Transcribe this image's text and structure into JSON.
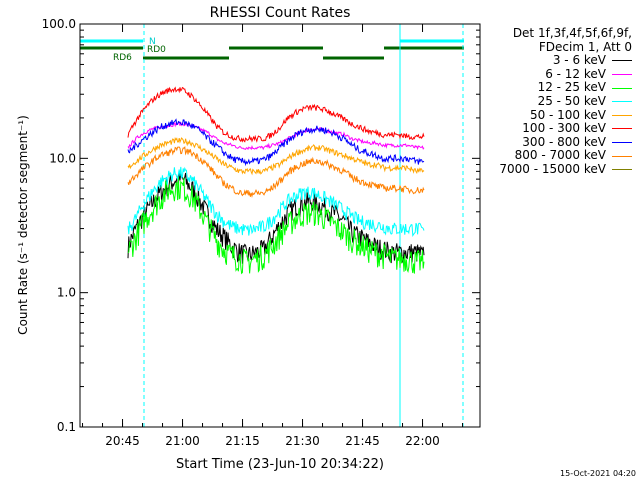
{
  "chart_data": {
    "type": "line",
    "title": "RHESSI Count Rates",
    "xlabel": "Start Time (23-Jun-10 20:34:22)",
    "ylabel": "Count Rate (s⁻¹ detector segment⁻¹)",
    "yscale": "log",
    "ylim": [
      0.1,
      100.0
    ],
    "xlim": [
      "20:34:22",
      "22:14:22"
    ],
    "x_ticks": [
      "20:45",
      "21:00",
      "21:15",
      "21:30",
      "21:45",
      "22:00"
    ],
    "y_ticks": [
      "0.1",
      "1.0",
      "10.0",
      "100.0"
    ],
    "x_minutes": [
      12,
      14,
      16,
      18,
      20,
      22,
      24,
      26,
      28,
      30,
      32,
      34,
      36,
      38,
      40,
      42,
      44,
      46,
      48,
      50,
      52,
      54,
      56,
      58,
      60,
      62,
      64,
      66,
      68,
      70,
      72,
      74,
      76,
      78,
      80,
      82,
      84,
      86
    ],
    "series": [
      {
        "name": "3 - 6 keV",
        "color": "#000000",
        "values": [
          2.2,
          3.0,
          3.8,
          4.6,
          5.5,
          6.3,
          7.0,
          6.9,
          6.0,
          4.8,
          3.8,
          3.0,
          2.6,
          2.2,
          2.0,
          1.9,
          2.0,
          2.1,
          2.6,
          3.2,
          3.9,
          4.4,
          4.7,
          4.8,
          4.5,
          4.2,
          3.8,
          3.4,
          2.8,
          2.6,
          2.4,
          2.2,
          2.1,
          2.0,
          2.0,
          2.0,
          2.0,
          1.9
        ]
      },
      {
        "name": "6 - 12 keV",
        "color": "#ff00ff",
        "values": [
          12.0,
          14.0,
          15.5,
          16.5,
          17.0,
          17.5,
          18.0,
          18.0,
          17.5,
          16.5,
          15.5,
          14.0,
          13.0,
          12.5,
          12.0,
          12.0,
          12.0,
          12.0,
          12.5,
          13.0,
          14.0,
          15.0,
          16.0,
          16.5,
          16.5,
          16.0,
          15.5,
          15.0,
          14.0,
          13.5,
          13.0,
          13.0,
          12.5,
          12.5,
          12.5,
          12.5,
          12.0,
          12.0
        ]
      },
      {
        "name": "12 - 25 keV",
        "color": "#00ff00",
        "values": [
          2.0,
          2.6,
          3.4,
          4.2,
          5.0,
          5.8,
          6.2,
          6.0,
          5.2,
          4.2,
          3.2,
          2.5,
          2.1,
          1.9,
          1.8,
          1.7,
          1.8,
          1.9,
          2.2,
          2.7,
          3.2,
          3.6,
          3.9,
          4.0,
          3.8,
          3.5,
          3.1,
          2.8,
          2.5,
          2.3,
          2.1,
          2.0,
          1.9,
          1.8,
          1.8,
          1.8,
          1.7,
          1.7
        ]
      },
      {
        "name": "25 - 50 keV",
        "color": "#00ffff",
        "values": [
          2.9,
          3.6,
          4.6,
          5.6,
          6.6,
          7.3,
          7.8,
          7.7,
          6.9,
          5.8,
          4.7,
          3.9,
          3.4,
          3.1,
          3.0,
          2.9,
          3.0,
          3.1,
          3.5,
          4.1,
          4.8,
          5.3,
          5.6,
          5.6,
          5.3,
          4.9,
          4.5,
          4.1,
          3.7,
          3.4,
          3.3,
          3.2,
          3.1,
          3.0,
          3.0,
          3.0,
          3.0,
          2.9
        ]
      },
      {
        "name": "50 - 100 keV",
        "color": "#ffa500",
        "values": [
          8.5,
          9.5,
          10.5,
          11.5,
          12.5,
          13.0,
          13.5,
          13.5,
          13.0,
          12.0,
          11.0,
          10.0,
          9.0,
          8.5,
          8.0,
          8.0,
          8.0,
          8.0,
          8.5,
          9.0,
          10.0,
          11.0,
          11.5,
          12.0,
          12.0,
          11.5,
          11.0,
          10.5,
          10.0,
          9.5,
          9.0,
          9.0,
          8.5,
          8.5,
          8.5,
          8.5,
          8.0,
          8.0
        ]
      },
      {
        "name": "100 - 300 keV",
        "color": "#ff0000",
        "values": [
          15.0,
          19.0,
          23.0,
          27.0,
          30.0,
          32.0,
          33.0,
          32.0,
          29.0,
          25.0,
          21.0,
          17.5,
          15.5,
          14.5,
          14.0,
          14.0,
          14.0,
          14.0,
          15.0,
          17.0,
          20.0,
          22.0,
          23.5,
          24.0,
          23.5,
          22.5,
          21.0,
          19.5,
          18.0,
          17.0,
          16.0,
          15.5,
          15.0,
          15.0,
          15.0,
          14.5,
          14.5,
          14.5
        ]
      },
      {
        "name": "300 - 800 keV",
        "color": "#0000ff",
        "values": [
          11.0,
          12.5,
          14.0,
          15.5,
          17.0,
          18.0,
          18.5,
          18.5,
          17.5,
          16.0,
          14.0,
          12.5,
          11.0,
          10.0,
          9.5,
          9.5,
          9.5,
          9.8,
          10.5,
          12.0,
          13.5,
          15.0,
          16.0,
          16.5,
          16.5,
          16.0,
          15.0,
          14.0,
          12.5,
          11.5,
          11.0,
          10.5,
          10.0,
          10.0,
          10.0,
          10.0,
          9.5,
          9.5
        ]
      },
      {
        "name": "800 - 7000 keV",
        "color": "#ff8000",
        "values": [
          6.5,
          7.5,
          8.5,
          9.5,
          10.5,
          11.0,
          11.5,
          11.5,
          11.0,
          10.0,
          8.8,
          7.5,
          6.5,
          6.0,
          5.5,
          5.5,
          5.5,
          5.5,
          6.0,
          6.8,
          7.8,
          8.6,
          9.2,
          9.5,
          9.5,
          9.0,
          8.5,
          8.0,
          7.2,
          6.8,
          6.5,
          6.2,
          6.0,
          6.0,
          6.0,
          5.8,
          5.8,
          5.8
        ]
      },
      {
        "name": "7000 - 15000 keV",
        "color": "#808000",
        "values": []
      }
    ],
    "legend_header": [
      "Det 1f,3f,4f,5f,6f,9f,",
      "FDecim 1, Att 0"
    ],
    "legend_position": "top-right",
    "state_bars": {
      "n_label": "N",
      "rd0_label": "RD0",
      "rd6_label": "RD6"
    }
  },
  "footer": "15-Oct-2021 04:20"
}
